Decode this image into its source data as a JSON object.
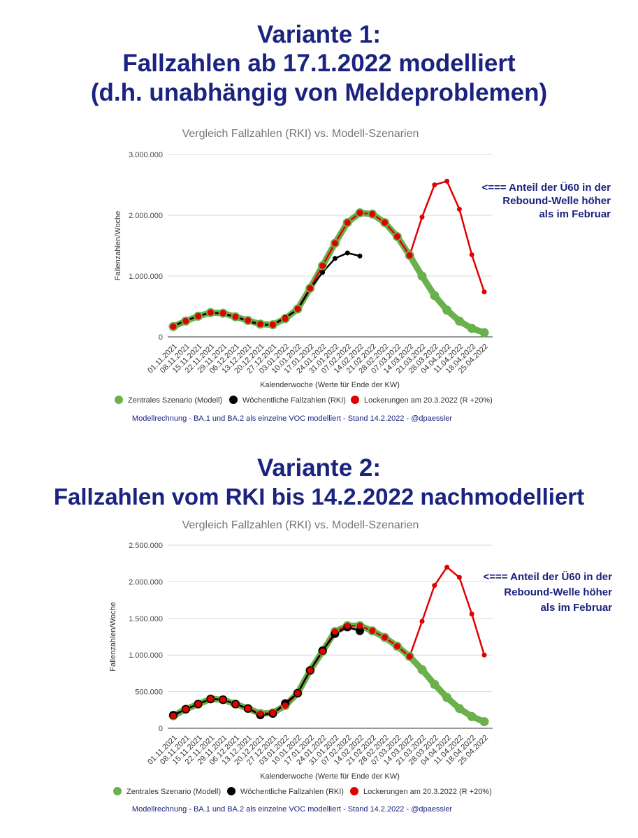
{
  "variant1": {
    "heading_lines": [
      "Variante 1:",
      "Fallzahlen ab 17.1.2022 modelliert",
      "(d.h. unabhängig von Meldeproblemen)"
    ]
  },
  "variant2": {
    "heading_lines": [
      "Variante 2:",
      "Fallzahlen vom RKI bis 14.2.2022 nachmodelliert"
    ]
  },
  "colors": {
    "heading": "#1a237e",
    "green": "#6ab04c",
    "black": "#000000",
    "red": "#e00000",
    "annotation": "#1a237e",
    "footer": "#1a237e",
    "title": "#757575"
  },
  "chart_data": [
    {
      "type": "line",
      "title": "Vergleich Fallzahlen (RKI) vs. Modell-Szenarien",
      "xlabel": "Kalenderwoche (Werte für Ende der KW)",
      "ylabel": "Fallenzahlen/Woche",
      "ylim": [
        0,
        3000000
      ],
      "yticks": [
        0,
        1000000,
        2000000,
        3000000
      ],
      "ytick_labels": [
        "0",
        "1.000.000",
        "2.000.000",
        "3.000.000"
      ],
      "grid": true,
      "legend_position": "bottom",
      "categories": [
        "01.11.2021",
        "08.11.2021",
        "15.11.2021",
        "22.11.2021",
        "29.11.2021",
        "06.12.2021",
        "13.12.2021",
        "20.12.2021",
        "27.12.2021",
        "03.01.2022",
        "10.01.2022",
        "17.01.2022",
        "24.01.2022",
        "31.01.2022",
        "07.02.2022",
        "14.02.2022",
        "21.02.2022",
        "28.02.2022",
        "07.03.2022",
        "14.03.2022",
        "21.03.2022",
        "28.03.2022",
        "04.04.2022",
        "11.04.2022",
        "18.04.2022",
        "25.04.2022"
      ],
      "series": [
        {
          "name": "Zentrales Szenario (Modell)",
          "values": [
            170000,
            260000,
            340000,
            400000,
            390000,
            330000,
            270000,
            210000,
            200000,
            300000,
            460000,
            800000,
            1170000,
            1540000,
            1880000,
            2040000,
            2020000,
            1880000,
            1650000,
            1340000,
            1000000,
            680000,
            440000,
            260000,
            140000,
            70000
          ]
        },
        {
          "name": "Wöchentliche Fallzahlen (RKI)",
          "values": [
            180000,
            270000,
            340000,
            400000,
            380000,
            330000,
            260000,
            200000,
            200000,
            320000,
            450000,
            790000,
            1060000,
            1290000,
            1380000,
            1330000,
            null,
            null,
            null,
            null,
            null,
            null,
            null,
            null,
            null,
            null
          ]
        },
        {
          "name": "Lockerungen am 20.3.2022 (R +20%)",
          "values": [
            170000,
            260000,
            340000,
            400000,
            390000,
            330000,
            270000,
            210000,
            200000,
            300000,
            460000,
            800000,
            1170000,
            1540000,
            1880000,
            2040000,
            2020000,
            1880000,
            1650000,
            1340000,
            1970000,
            2500000,
            2560000,
            2100000,
            1350000,
            740000
          ]
        }
      ],
      "annotation": [
        "<=== Anteil der Ü60 in der",
        "Rebound-Welle höher",
        "als im Februar"
      ],
      "footer": "Modellrechnung - BA.1 und BA.2 als einzelne VOC modelliert - Stand 14.2.2022 - @dpaessler"
    },
    {
      "type": "line",
      "title": "Vergleich Fallzahlen (RKI) vs. Modell-Szenarien",
      "xlabel": "Kalenderwoche (Werte für Ende der KW)",
      "ylabel": "Fallenzahlen/Woche",
      "ylim": [
        0,
        2500000
      ],
      "yticks": [
        0,
        500000,
        1000000,
        1500000,
        2000000,
        2500000
      ],
      "ytick_labels": [
        "0",
        "500.000",
        "1.000.000",
        "1.500.000",
        "2.000.000",
        "2.500.000"
      ],
      "grid": true,
      "legend_position": "bottom",
      "categories": [
        "01.11.2021",
        "08.11.2021",
        "15.11.2021",
        "22.11.2021",
        "29.11.2021",
        "06.12.2021",
        "13.12.2021",
        "20.12.2021",
        "27.12.2021",
        "03.01.2022",
        "10.01.2022",
        "17.01.2022",
        "24.01.2022",
        "31.01.2022",
        "07.02.2022",
        "14.02.2022",
        "21.02.2022",
        "28.02.2022",
        "07.03.2022",
        "14.03.2022",
        "21.03.2022",
        "28.03.2022",
        "04.04.2022",
        "11.04.2022",
        "18.04.2022",
        "25.04.2022"
      ],
      "series": [
        {
          "name": "Zentrales Szenario (Modell)",
          "values": [
            170000,
            260000,
            330000,
            400000,
            390000,
            330000,
            270000,
            200000,
            210000,
            310000,
            480000,
            790000,
            1050000,
            1320000,
            1400000,
            1400000,
            1330000,
            1240000,
            1120000,
            980000,
            800000,
            600000,
            420000,
            270000,
            160000,
            90000
          ]
        },
        {
          "name": "Wöchentliche Fallzahlen (RKI)",
          "values": [
            180000,
            260000,
            330000,
            400000,
            390000,
            330000,
            270000,
            180000,
            200000,
            340000,
            480000,
            790000,
            1060000,
            1290000,
            1380000,
            1330000,
            null,
            null,
            null,
            null,
            null,
            null,
            null,
            null,
            null,
            null
          ]
        },
        {
          "name": "Lockerungen am 20.3.2022 (R +20%)",
          "values": [
            170000,
            260000,
            330000,
            400000,
            390000,
            330000,
            270000,
            200000,
            210000,
            310000,
            480000,
            790000,
            1050000,
            1320000,
            1400000,
            1400000,
            1330000,
            1240000,
            1120000,
            980000,
            1460000,
            1950000,
            2200000,
            2060000,
            1560000,
            1000000
          ]
        }
      ],
      "annotation": [
        "<=== Anteil der Ü60 in der",
        "Rebound-Welle höher",
        "als im Februar"
      ],
      "footer": "Modellrechnung - BA.1 und BA.2 als einzelne VOC modelliert - Stand 14.2.2022 - @dpaessler"
    }
  ]
}
